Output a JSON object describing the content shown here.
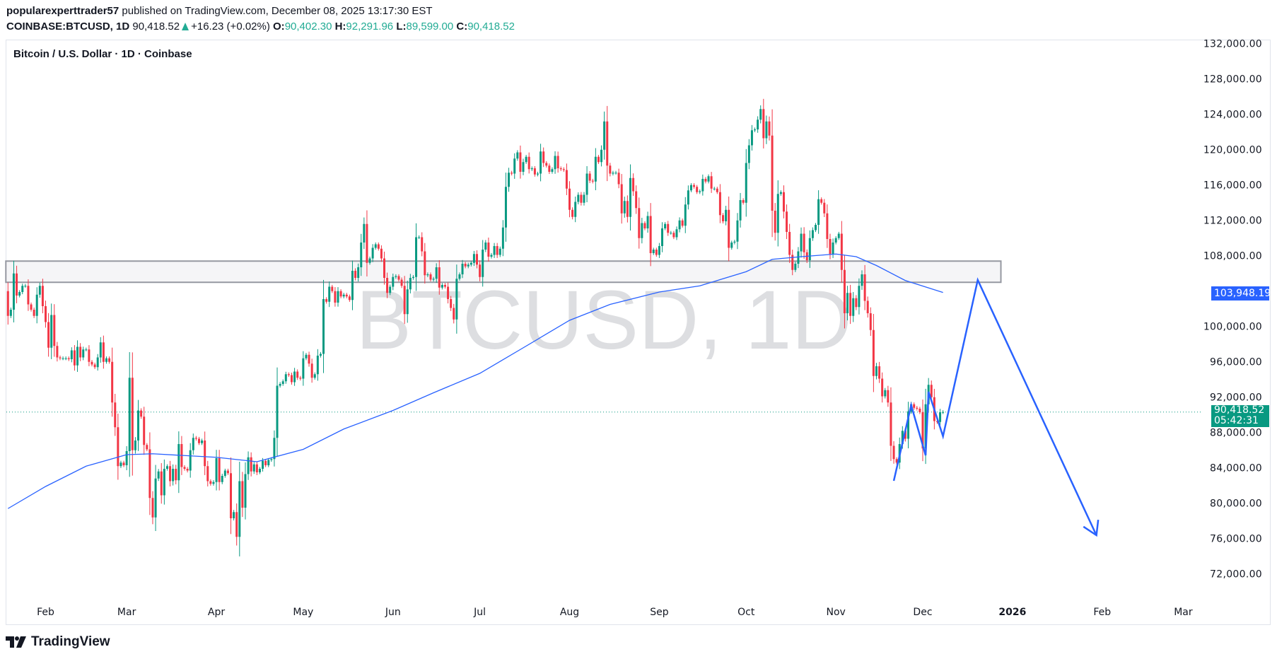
{
  "header": {
    "author": "popularexperttrader57",
    "published": "published on TradingView.com, December 08, 2025 13:17:30 EST",
    "symbol": "COINBASE:BTCUSD, 1D",
    "last": "90,418.52",
    "change": "+16.23 (+0.02%)",
    "o_label": "O:",
    "o": "90,402.30",
    "h_label": "H:",
    "h": "92,291.96",
    "l_label": "L:",
    "l": "89,599.00",
    "c_label": "C:",
    "c": "90,418.52"
  },
  "chart_title": "Bitcoin / U.S. Dollar · 1D · Coinbase",
  "watermark": "BTCUSD, 1D",
  "brand": "TradingView",
  "colors": {
    "up": "#089981",
    "down": "#f23645",
    "ma": "#2962ff",
    "projection": "#2962ff",
    "zone_fill": "#f5f5f7",
    "zone_border": "#9598a1",
    "last_price": "#089981"
  },
  "price_axis": {
    "ticks": [
      "132,000.00",
      "128,000.00",
      "124,000.00",
      "120,000.00",
      "116,000.00",
      "112,000.00",
      "108,000.00",
      "100,000.00",
      "96,000.00",
      "92,000.00",
      "88,000.00",
      "84,000.00",
      "80,000.00",
      "76,000.00",
      "72,000.00"
    ],
    "ma_value": "103,948.19",
    "last_price": "90,418.52",
    "countdown": "05:42:31"
  },
  "time_axis": [
    {
      "label": "Feb",
      "date": "2025-02-01"
    },
    {
      "label": "Mar",
      "date": "2025-03-01"
    },
    {
      "label": "Apr",
      "date": "2025-04-01"
    },
    {
      "label": "May",
      "date": "2025-05-01"
    },
    {
      "label": "Jun",
      "date": "2025-06-01"
    },
    {
      "label": "Jul",
      "date": "2025-07-01"
    },
    {
      "label": "Aug",
      "date": "2025-08-01"
    },
    {
      "label": "Sep",
      "date": "2025-09-01"
    },
    {
      "label": "Oct",
      "date": "2025-10-01"
    },
    {
      "label": "Nov",
      "date": "2025-11-01"
    },
    {
      "label": "Dec",
      "date": "2025-12-01"
    },
    {
      "label": "2026",
      "date": "2026-01-01",
      "bold": true
    },
    {
      "label": "Feb",
      "date": "2026-02-01"
    },
    {
      "label": "Mar",
      "date": "2026-03-01"
    }
  ],
  "chart_data": {
    "type": "candlestick",
    "start_date": "2025-01-19",
    "first_open": 104100,
    "closes": [
      101300,
      102000,
      106100,
      103600,
      104000,
      104700,
      104700,
      102600,
      102000,
      101300,
      103700,
      104700,
      102400,
      100600,
      97700,
      101400,
      97900,
      96600,
      96500,
      96500,
      96500,
      96400,
      97400,
      95700,
      97800,
      96600,
      97500,
      97500,
      96100,
      95800,
      95500,
      96600,
      98300,
      96100,
      96500,
      96100,
      91500,
      88700,
      84300,
      84700,
      84400,
      86000,
      94300,
      86100,
      87200,
      90600,
      89900,
      86700,
      86200,
      80700,
      78500,
      82900,
      83700,
      81000,
      84000,
      84300,
      82600,
      84000,
      82700,
      86800,
      84200,
      84000,
      83800,
      86100,
      87500,
      87400,
      86900,
      87200,
      84300,
      82600,
      82300,
      82500,
      85200,
      82500,
      83200,
      83800,
      83500,
      78400,
      79100,
      76300,
      82600,
      79600,
      83400,
      85300,
      83700,
      84500,
      83600,
      84000,
      84900,
      84400,
      85000,
      85100,
      87500,
      93400,
      93600,
      93900,
      94700,
      94600,
      93800,
      95000,
      94300,
      94200,
      96500,
      96900,
      95900,
      94300,
      94700,
      96800,
      97000,
      103200,
      102900,
      104600,
      104100,
      102800,
      104100,
      103500,
      103700,
      103500,
      103100,
      106400,
      105600,
      106800,
      109600,
      111700,
      107300,
      107800,
      109000,
      109400,
      108900,
      107800,
      105600,
      103900,
      104600,
      105700,
      105800,
      105400,
      104700,
      101500,
      104300,
      105600,
      105700,
      110200,
      110200,
      108600,
      105900,
      106000,
      105400,
      105500,
      106800,
      104500,
      104800,
      104600,
      103200,
      102200,
      100900,
      105500,
      106000,
      107200,
      106900,
      107100,
      107300,
      108300,
      107100,
      105700,
      108800,
      109600,
      108000,
      108200,
      109200,
      108200,
      108900,
      111300,
      115900,
      117500,
      117400,
      119100,
      119800,
      117600,
      118700,
      119300,
      117900,
      118000,
      117300,
      117400,
      119900,
      118600,
      118300,
      117600,
      117900,
      119400,
      118000,
      117900,
      117800,
      115700,
      113300,
      112500,
      114200,
      115000,
      114100,
      115000,
      117400,
      116600,
      116500,
      119300,
      118700,
      120100,
      123300,
      118300,
      117400,
      117500,
      117500,
      116200,
      112900,
      114300,
      112500,
      116900,
      115400,
      113500,
      110100,
      111800,
      111200,
      112600,
      108400,
      108800,
      108200,
      109200,
      111200,
      111700,
      110700,
      110700,
      110200,
      111100,
      112100,
      111500,
      113900,
      115500,
      116100,
      115900,
      115300,
      115400,
      116800,
      116500,
      117100,
      115700,
      115700,
      115300,
      112700,
      112000,
      113300,
      109000,
      109600,
      109700,
      112100,
      114400,
      114100,
      118600,
      120600,
      122300,
      122400,
      123500,
      124700,
      121400,
      123300,
      121700,
      113200,
      110700,
      115100,
      115300,
      113100,
      110800,
      108200,
      106500,
      107200,
      108600,
      110600,
      108500,
      107600,
      110100,
      111000,
      111600,
      114500,
      114100,
      112900,
      110000,
      108300,
      109600,
      110100,
      110600,
      106500,
      101600,
      103900,
      101300,
      103300,
      102300,
      104700,
      106000,
      103000,
      101600,
      99700,
      94500,
      95600,
      94200,
      92200,
      92900,
      91500,
      86600,
      85100,
      84700,
      86800,
      88300,
      87400,
      90500,
      91300,
      90900,
      90800,
      90400,
      86300,
      91300,
      93500,
      92100,
      89400,
      89300,
      90400,
      90418.52
    ],
    "ma_line": [
      [
        "2025-01-19",
        79500
      ],
      [
        "2025-02-01",
        82000
      ],
      [
        "2025-02-15",
        84300
      ],
      [
        "2025-03-01",
        85600
      ],
      [
        "2025-03-10",
        85700
      ],
      [
        "2025-04-01",
        85300
      ],
      [
        "2025-04-15",
        84800
      ],
      [
        "2025-05-01",
        86200
      ],
      [
        "2025-05-15",
        88500
      ],
      [
        "2025-06-01",
        90600
      ],
      [
        "2025-06-15",
        92600
      ],
      [
        "2025-07-01",
        94800
      ],
      [
        "2025-07-15",
        97500
      ],
      [
        "2025-08-01",
        100800
      ],
      [
        "2025-08-15",
        102600
      ],
      [
        "2025-09-01",
        104000
      ],
      [
        "2025-09-15",
        104700
      ],
      [
        "2025-10-01",
        106300
      ],
      [
        "2025-10-10",
        107700
      ],
      [
        "2025-10-20",
        108000
      ],
      [
        "2025-11-01",
        108300
      ],
      [
        "2025-11-08",
        108000
      ],
      [
        "2025-11-15",
        107000
      ],
      [
        "2025-11-25",
        105300
      ],
      [
        "2025-12-08",
        103948.19
      ]
    ],
    "zone": {
      "top": 107500,
      "bottom": 105100,
      "from": "2025-01-19",
      "to": "2025-12-28"
    },
    "projection": [
      [
        "2025-11-21",
        82640
      ],
      [
        "2025-11-27",
        91200
      ],
      [
        "2025-12-02",
        85520
      ],
      [
        "2025-12-03",
        92720
      ],
      [
        "2025-12-08",
        87680
      ],
      [
        "2025-12-20",
        105360
      ],
      [
        "2026-01-30",
        76480
      ]
    ],
    "last_price_line": 90418.52,
    "ylim": [
      70000,
      133000
    ],
    "grid": false
  }
}
